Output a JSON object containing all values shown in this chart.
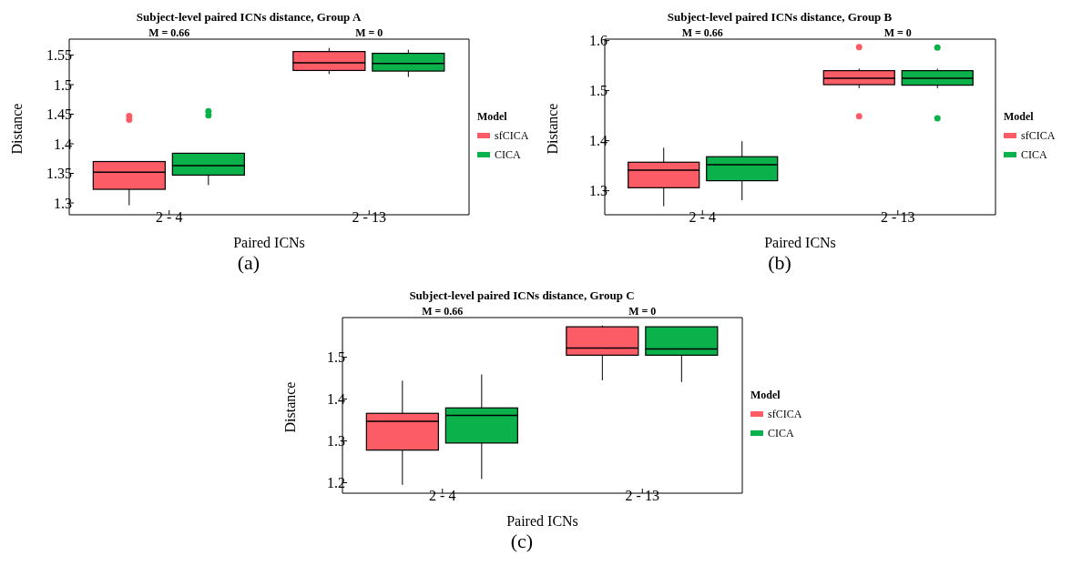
{
  "chart_data": [
    {
      "type": "box",
      "title": "Subject-level paired ICNs distance, Group A",
      "xlabel": "Paired ICNs",
      "ylabel": "Distance",
      "legend_title": "Model",
      "legend": "right",
      "grid": false,
      "categories": [
        "2 - 4",
        "2 - 13"
      ],
      "ylim": [
        1.28,
        1.577
      ],
      "yticks": [
        1.3,
        1.35,
        1.4,
        1.45,
        1.5,
        1.55
      ],
      "series": [
        {
          "name": "sfCICA",
          "color": "#fc5c65",
          "boxes": [
            {
              "low": 1.296,
              "q1": 1.323,
              "median": 1.352,
              "q3": 1.37,
              "high": 1.37,
              "outliers": [
                1.447,
                1.441
              ]
            },
            {
              "low": 1.518,
              "q1": 1.524,
              "median": 1.537,
              "q3": 1.556,
              "high": 1.562
            }
          ]
        },
        {
          "name": "CICA",
          "color": "#0bb14a",
          "boxes": [
            {
              "low": 1.33,
              "q1": 1.347,
              "median": 1.363,
              "q3": 1.384,
              "high": 1.384,
              "outliers": [
                1.455,
                1.448
              ]
            },
            {
              "low": 1.513,
              "q1": 1.523,
              "median": 1.536,
              "q3": 1.553,
              "high": 1.559
            }
          ]
        }
      ],
      "annotations": [
        "M = 0.66",
        "M = 0",
        "(a)"
      ]
    },
    {
      "type": "box",
      "title": "Subject-level paired ICNs distance, Group B",
      "xlabel": "Paired ICNs",
      "ylabel": "Distance",
      "legend_title": "Model",
      "legend": "right",
      "grid": false,
      "categories": [
        "2 - 4",
        "2 - 13"
      ],
      "ylim": [
        1.252,
        1.603
      ],
      "yticks": [
        1.3,
        1.4,
        1.5,
        1.6
      ],
      "series": [
        {
          "name": "sfCICA",
          "color": "#fc5c65",
          "boxes": [
            {
              "low": 1.269,
              "q1": 1.306,
              "median": 1.341,
              "q3": 1.357,
              "high": 1.386
            },
            {
              "low": 1.505,
              "q1": 1.512,
              "median": 1.525,
              "q3": 1.54,
              "high": 1.544,
              "outliers": [
                1.587,
                1.449
              ]
            }
          ]
        },
        {
          "name": "CICA",
          "color": "#0bb14a",
          "boxes": [
            {
              "low": 1.281,
              "q1": 1.32,
              "median": 1.352,
              "q3": 1.368,
              "high": 1.399
            },
            {
              "low": 1.505,
              "q1": 1.511,
              "median": 1.525,
              "q3": 1.54,
              "high": 1.544,
              "outliers": [
                1.586,
                1.445
              ]
            }
          ]
        }
      ],
      "annotations": [
        "M = 0.66",
        "M = 0",
        "(b)"
      ]
    },
    {
      "type": "box",
      "title": "Subject-level paired ICNs distance, Group C",
      "xlabel": "Paired ICNs",
      "ylabel": "Distance",
      "legend_title": "Model",
      "legend": "right",
      "grid": false,
      "categories": [
        "2 - 4",
        "2 - 13"
      ],
      "ylim": [
        1.175,
        1.595
      ],
      "yticks": [
        1.2,
        1.3,
        1.4,
        1.5
      ],
      "series": [
        {
          "name": "sfCICA",
          "color": "#fc5c65",
          "boxes": [
            {
              "low": 1.195,
              "q1": 1.278,
              "median": 1.347,
              "q3": 1.366,
              "high": 1.444
            },
            {
              "low": 1.445,
              "q1": 1.505,
              "median": 1.522,
              "q3": 1.573,
              "high": 1.576
            }
          ]
        },
        {
          "name": "CICA",
          "color": "#0bb14a",
          "boxes": [
            {
              "low": 1.209,
              "q1": 1.295,
              "median": 1.361,
              "q3": 1.379,
              "high": 1.459
            },
            {
              "low": 1.441,
              "q1": 1.505,
              "median": 1.52,
              "q3": 1.573,
              "high": 1.573
            }
          ]
        }
      ],
      "annotations": [
        "M = 0.66",
        "M = 0",
        "(c)"
      ]
    }
  ]
}
